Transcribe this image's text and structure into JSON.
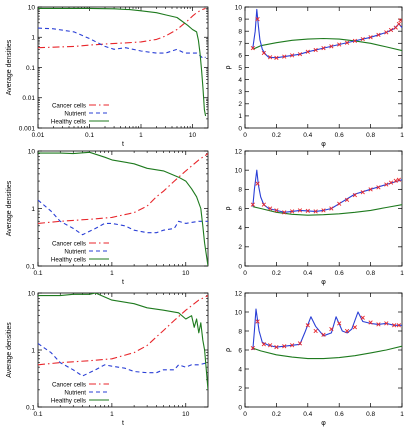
{
  "chart_data": [
    {
      "type": "line",
      "panel": "row1-left",
      "xlabel": "t",
      "ylabel": "Average densities",
      "x_scale": "log",
      "y_scale": "log",
      "xlim": [
        0.01,
        20
      ],
      "ylim": [
        0.001,
        10
      ],
      "x_ticks": [
        "0.01",
        "0.1",
        "1",
        "10"
      ],
      "y_ticks": [
        "0.001",
        "0.01",
        "0.1",
        "1",
        "10"
      ],
      "x_tick_values": [
        0.01,
        0.1,
        1,
        10
      ],
      "y_tick_values": [
        0.001,
        0.01,
        0.1,
        1,
        10
      ],
      "legend_position": "bottom-left",
      "series": [
        {
          "name": "Cancer cells",
          "color": "#e8262b",
          "dash": "dashdot",
          "x": [
            0.01,
            0.02,
            0.05,
            0.1,
            0.2,
            0.5,
            1,
            2,
            3,
            5,
            8,
            10,
            12,
            15,
            18
          ],
          "y": [
            0.45,
            0.47,
            0.5,
            0.55,
            0.6,
            0.65,
            0.7,
            0.85,
            1.1,
            1.8,
            3.5,
            5,
            6.5,
            8,
            9
          ]
        },
        {
          "name": "Nutrient",
          "color": "#2a3fd6",
          "dash": "dashed",
          "x": [
            0.01,
            0.02,
            0.05,
            0.1,
            0.2,
            0.3,
            0.5,
            1,
            2,
            3,
            5,
            7,
            10,
            12,
            14,
            16,
            18
          ],
          "y": [
            2.0,
            1.9,
            1.5,
            0.9,
            0.5,
            0.4,
            0.45,
            0.35,
            0.3,
            0.3,
            0.4,
            0.3,
            0.3,
            0.3,
            0.25,
            0.2,
            0.22
          ]
        },
        {
          "name": "Healthy cells",
          "color": "#1e7a1e",
          "dash": "solid",
          "x": [
            0.01,
            0.05,
            0.1,
            0.3,
            0.6,
            1,
            2,
            3,
            5,
            8,
            10,
            12,
            13,
            14,
            15,
            16,
            17,
            18
          ],
          "y": [
            9,
            9,
            9,
            8.7,
            8.2,
            7.5,
            6.5,
            5.5,
            4.5,
            2.5,
            1.8,
            1.5,
            0.8,
            0.3,
            0.08,
            0.02,
            0.004,
            0.0025
          ]
        }
      ]
    },
    {
      "type": "line",
      "panel": "row1-right",
      "xlabel": "φ",
      "ylabel": "ρ",
      "xlim": [
        0,
        1
      ],
      "ylim": [
        0,
        10
      ],
      "x_ticks": [
        "0",
        "0.2",
        "0.4",
        "0.6",
        "0.8",
        "1"
      ],
      "y_ticks": [
        "0",
        "1",
        "2",
        "3",
        "4",
        "5",
        "6",
        "7",
        "8",
        "9",
        "10"
      ],
      "x_tick_values": [
        0,
        0.2,
        0.4,
        0.6,
        0.8,
        1
      ],
      "y_tick_values": [
        0,
        1,
        2,
        3,
        4,
        5,
        6,
        7,
        8,
        9,
        10
      ],
      "series": [
        {
          "color": "#1e7a1e",
          "dash": "solid",
          "x": [
            0.05,
            0.1,
            0.2,
            0.3,
            0.4,
            0.5,
            0.6,
            0.7,
            0.8,
            0.9,
            1.0
          ],
          "y": [
            6.5,
            6.8,
            7.05,
            7.25,
            7.35,
            7.4,
            7.35,
            7.2,
            7.0,
            6.7,
            6.4
          ]
        },
        {
          "color": "#2a3fd6",
          "dash": "solid",
          "x": [
            0.05,
            0.065,
            0.075,
            0.085,
            0.095,
            0.11,
            0.13,
            0.15,
            0.2,
            0.25,
            0.3,
            0.35,
            0.4,
            0.5,
            0.6,
            0.7,
            0.8,
            0.9,
            0.95,
            0.98,
            1.0
          ],
          "y": [
            6.6,
            8.0,
            9.8,
            8.5,
            7.3,
            6.5,
            6.1,
            5.85,
            5.8,
            5.9,
            6.0,
            6.1,
            6.3,
            6.6,
            6.9,
            7.2,
            7.5,
            7.9,
            8.2,
            8.6,
            8.3
          ]
        },
        {
          "color": "#e8262b",
          "dash": "points",
          "x": [
            0.05,
            0.08,
            0.12,
            0.16,
            0.2,
            0.25,
            0.3,
            0.35,
            0.4,
            0.45,
            0.5,
            0.55,
            0.6,
            0.65,
            0.7,
            0.75,
            0.8,
            0.85,
            0.9,
            0.93,
            0.96,
            0.98,
            0.99
          ],
          "y": [
            6.6,
            9.0,
            6.2,
            5.85,
            5.8,
            5.9,
            6.0,
            6.1,
            6.3,
            6.45,
            6.6,
            6.75,
            6.9,
            7.05,
            7.2,
            7.35,
            7.5,
            7.7,
            7.9,
            8.1,
            8.3,
            8.6,
            8.9
          ]
        }
      ]
    },
    {
      "type": "line",
      "panel": "row2-left",
      "xlabel": "t",
      "ylabel": "Average densities",
      "x_scale": "log",
      "y_scale": "log",
      "xlim": [
        0.1,
        20
      ],
      "ylim": [
        0.1,
        10
      ],
      "x_ticks": [
        "0.1",
        "1",
        "10"
      ],
      "y_ticks": [
        "0.1",
        "1",
        "10"
      ],
      "x_tick_values": [
        0.1,
        1,
        10
      ],
      "y_tick_values": [
        0.1,
        1,
        10
      ],
      "legend_position": "bottom-left",
      "series": [
        {
          "name": "Cancer cells",
          "color": "#e8262b",
          "dash": "dashdot",
          "x": [
            0.1,
            0.2,
            0.3,
            0.5,
            1,
            2,
            3,
            4,
            5,
            7,
            10,
            15,
            20
          ],
          "y": [
            0.55,
            0.6,
            0.62,
            0.65,
            0.7,
            0.85,
            1.1,
            1.6,
            2.0,
            3.0,
            4.5,
            7.0,
            9.0
          ]
        },
        {
          "name": "Nutrient",
          "color": "#2a3fd6",
          "dash": "dashed",
          "x": [
            0.1,
            0.15,
            0.2,
            0.3,
            0.4,
            0.6,
            0.8,
            1,
            1.5,
            2,
            3,
            4,
            5,
            7,
            8,
            10,
            15,
            20
          ],
          "y": [
            1.4,
            0.9,
            0.6,
            0.45,
            0.35,
            0.45,
            0.55,
            0.55,
            0.5,
            0.42,
            0.38,
            0.38,
            0.42,
            0.45,
            0.6,
            0.55,
            0.6,
            0.6
          ]
        },
        {
          "name": "Healthy cells",
          "color": "#1e7a1e",
          "dash": "solid",
          "x": [
            0.1,
            0.2,
            0.3,
            0.5,
            0.6,
            0.8,
            1,
            2,
            3,
            5,
            8,
            10,
            12,
            14,
            16,
            17,
            18,
            20
          ],
          "y": [
            9.2,
            9.2,
            9.0,
            9.5,
            8.8,
            7.8,
            7.0,
            6.0,
            5.0,
            4.5,
            3.5,
            3.0,
            2.2,
            1.6,
            1.0,
            0.5,
            0.25,
            0.1
          ]
        }
      ]
    },
    {
      "type": "line",
      "panel": "row2-right",
      "xlabel": "φ",
      "ylabel": "ρ",
      "xlim": [
        0,
        1
      ],
      "ylim": [
        0,
        12
      ],
      "x_ticks": [
        "0",
        "0.2",
        "0.4",
        "0.6",
        "0.8",
        "1"
      ],
      "y_ticks": [
        "0",
        "2",
        "4",
        "6",
        "8",
        "10",
        "12"
      ],
      "x_tick_values": [
        0,
        0.2,
        0.4,
        0.6,
        0.8,
        1
      ],
      "y_tick_values": [
        0,
        2,
        4,
        6,
        8,
        10,
        12
      ],
      "series": [
        {
          "color": "#1e7a1e",
          "dash": "solid",
          "x": [
            0.05,
            0.1,
            0.2,
            0.3,
            0.4,
            0.5,
            0.6,
            0.7,
            0.8,
            0.9,
            1.0
          ],
          "y": [
            6.2,
            6.0,
            5.6,
            5.4,
            5.3,
            5.35,
            5.45,
            5.6,
            5.8,
            6.1,
            6.4
          ]
        },
        {
          "color": "#2a3fd6",
          "dash": "solid",
          "x": [
            0.05,
            0.06,
            0.075,
            0.085,
            0.1,
            0.12,
            0.15,
            0.2,
            0.25,
            0.3,
            0.35,
            0.4,
            0.45,
            0.5,
            0.55,
            0.6,
            0.65,
            0.7,
            0.8,
            0.9,
            1.0
          ],
          "y": [
            6.2,
            8.0,
            10.0,
            8.5,
            7.2,
            6.4,
            6.0,
            5.8,
            5.6,
            5.7,
            5.8,
            5.75,
            5.7,
            5.8,
            6.0,
            6.5,
            7.0,
            7.5,
            8.0,
            8.5,
            9.0
          ]
        },
        {
          "color": "#e8262b",
          "dash": "points",
          "x": [
            0.05,
            0.08,
            0.12,
            0.16,
            0.2,
            0.25,
            0.3,
            0.35,
            0.4,
            0.45,
            0.5,
            0.55,
            0.6,
            0.65,
            0.7,
            0.75,
            0.8,
            0.85,
            0.9,
            0.93,
            0.96,
            0.98
          ],
          "y": [
            6.4,
            8.6,
            6.4,
            6.0,
            5.8,
            5.6,
            5.7,
            5.8,
            5.75,
            5.7,
            5.8,
            6.0,
            6.5,
            6.9,
            7.4,
            7.7,
            8.0,
            8.2,
            8.5,
            8.7,
            8.9,
            9.0
          ]
        }
      ]
    },
    {
      "type": "line",
      "panel": "row3-left",
      "xlabel": "t",
      "ylabel": "Average densities",
      "x_scale": "log",
      "y_scale": "log",
      "xlim": [
        0.1,
        20
      ],
      "ylim": [
        0.1,
        10
      ],
      "x_ticks": [
        "0.1",
        "1",
        "10"
      ],
      "y_ticks": [
        "0.1",
        "1",
        "10"
      ],
      "x_tick_values": [
        0.1,
        1,
        10
      ],
      "y_tick_values": [
        0.1,
        1,
        10
      ],
      "legend_position": "bottom-left",
      "series": [
        {
          "name": "Cancer cells",
          "color": "#e8262b",
          "dash": "dashdot",
          "x": [
            0.1,
            0.2,
            0.3,
            0.5,
            1,
            2,
            3,
            4,
            5,
            7,
            10,
            15,
            20
          ],
          "y": [
            0.55,
            0.6,
            0.62,
            0.65,
            0.7,
            0.9,
            1.2,
            1.7,
            2.2,
            3.3,
            5.0,
            7.5,
            9.0
          ]
        },
        {
          "name": "Nutrient",
          "color": "#2a3fd6",
          "dash": "dashed",
          "x": [
            0.1,
            0.15,
            0.2,
            0.3,
            0.4,
            0.6,
            0.8,
            1,
            1.5,
            2,
            3,
            4,
            5,
            7,
            8,
            10,
            12,
            15,
            20
          ],
          "y": [
            1.3,
            0.9,
            0.6,
            0.45,
            0.35,
            0.45,
            0.55,
            0.52,
            0.48,
            0.42,
            0.4,
            0.4,
            0.45,
            0.45,
            0.55,
            0.5,
            0.55,
            0.55,
            0.6
          ]
        },
        {
          "name": "Healthy cells",
          "color": "#1e7a1e",
          "dash": "solid",
          "x": [
            0.1,
            0.2,
            0.3,
            0.5,
            0.6,
            0.8,
            1,
            2,
            3,
            5,
            8,
            10,
            12,
            13,
            14,
            15,
            16,
            17,
            18,
            20
          ],
          "y": [
            9.0,
            9.0,
            9.5,
            9.5,
            10.0,
            8.5,
            7.5,
            6.5,
            5.5,
            5.0,
            4.5,
            3.5,
            4.0,
            2.5,
            3.5,
            2.0,
            3.0,
            1.5,
            1.0,
            0.2
          ]
        }
      ]
    },
    {
      "type": "line",
      "panel": "row3-right",
      "xlabel": "φ",
      "ylabel": "ρ",
      "xlim": [
        0,
        1
      ],
      "ylim": [
        0,
        12
      ],
      "x_ticks": [
        "0",
        "0.2",
        "0.4",
        "0.6",
        "0.8",
        "1"
      ],
      "y_ticks": [
        "0",
        "2",
        "4",
        "6",
        "8",
        "10",
        "12"
      ],
      "x_tick_values": [
        0,
        0.2,
        0.4,
        0.6,
        0.8,
        1
      ],
      "y_tick_values": [
        0,
        2,
        4,
        6,
        8,
        10,
        12
      ],
      "series": [
        {
          "color": "#1e7a1e",
          "dash": "solid",
          "x": [
            0.05,
            0.1,
            0.2,
            0.3,
            0.4,
            0.5,
            0.6,
            0.7,
            0.8,
            0.9,
            1.0
          ],
          "y": [
            6.2,
            5.9,
            5.5,
            5.25,
            5.1,
            5.1,
            5.2,
            5.4,
            5.7,
            6.0,
            6.4
          ]
        },
        {
          "color": "#2a3fd6",
          "dash": "solid",
          "x": [
            0.05,
            0.06,
            0.07,
            0.09,
            0.11,
            0.15,
            0.2,
            0.25,
            0.3,
            0.35,
            0.38,
            0.42,
            0.45,
            0.5,
            0.55,
            0.58,
            0.62,
            0.65,
            0.68,
            0.72,
            0.75,
            0.8,
            0.85,
            0.9,
            0.95,
            1.0
          ],
          "y": [
            6.0,
            8.0,
            10.3,
            8.0,
            6.8,
            6.5,
            6.3,
            6.4,
            6.5,
            6.6,
            7.8,
            9.5,
            8.5,
            7.5,
            7.8,
            9.5,
            8.0,
            7.8,
            8.2,
            10.0,
            9.0,
            8.8,
            8.7,
            8.8,
            8.6,
            8.6
          ]
        },
        {
          "color": "#e8262b",
          "dash": "points",
          "x": [
            0.05,
            0.08,
            0.12,
            0.16,
            0.2,
            0.25,
            0.3,
            0.35,
            0.4,
            0.45,
            0.5,
            0.55,
            0.6,
            0.65,
            0.7,
            0.75,
            0.8,
            0.85,
            0.9,
            0.95,
            0.98
          ],
          "y": [
            6.2,
            9.0,
            6.6,
            6.5,
            6.3,
            6.4,
            6.5,
            6.7,
            8.6,
            8.0,
            7.6,
            8.2,
            8.8,
            8.0,
            8.4,
            9.4,
            8.9,
            8.7,
            8.8,
            8.6,
            8.6
          ]
        }
      ]
    }
  ]
}
